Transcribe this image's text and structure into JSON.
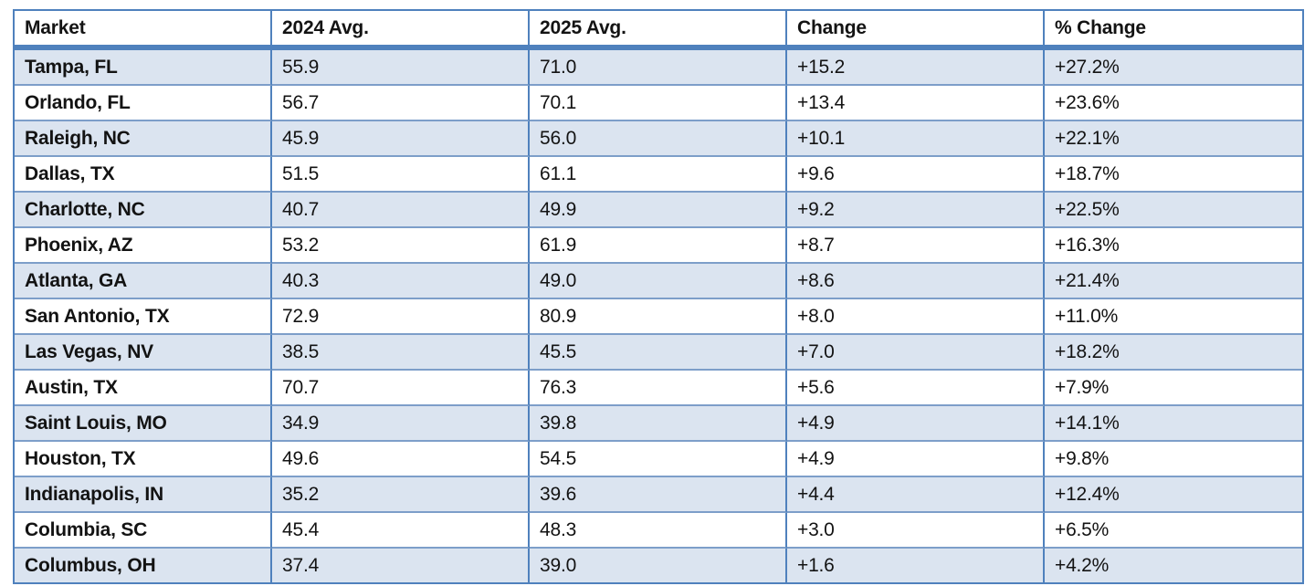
{
  "page": {
    "background": "#ffffff"
  },
  "colors": {
    "border_strong": "#4f81bd",
    "border_inner": "#7d9ec9",
    "row_shade": "#dbe4f0",
    "header_bg": "#ffffff",
    "text": "#131313"
  },
  "chart_data": {
    "type": "table",
    "columns": [
      "Market",
      "2024 Avg.",
      "2025 Avg.",
      "Change",
      "% Change"
    ],
    "rows": [
      [
        "Tampa, FL",
        "55.9",
        "71.0",
        "+15.2",
        "+27.2%"
      ],
      [
        "Orlando, FL",
        "56.7",
        "70.1",
        "+13.4",
        "+23.6%"
      ],
      [
        "Raleigh, NC",
        "45.9",
        "56.0",
        "+10.1",
        "+22.1%"
      ],
      [
        "Dallas, TX",
        "51.5",
        "61.1",
        "+9.6",
        "+18.7%"
      ],
      [
        "Charlotte, NC",
        "40.7",
        "49.9",
        "+9.2",
        "+22.5%"
      ],
      [
        "Phoenix, AZ",
        "53.2",
        "61.9",
        "+8.7",
        "+16.3%"
      ],
      [
        "Atlanta, GA",
        "40.3",
        "49.0",
        "+8.6",
        "+21.4%"
      ],
      [
        "San Antonio, TX",
        "72.9",
        "80.9",
        "+8.0",
        "+11.0%"
      ],
      [
        "Las Vegas, NV",
        "38.5",
        "45.5",
        "+7.0",
        "+18.2%"
      ],
      [
        "Austin, TX",
        "70.7",
        "76.3",
        "+5.6",
        "+7.9%"
      ],
      [
        "Saint Louis, MO",
        "34.9",
        "39.8",
        "+4.9",
        "+14.1%"
      ],
      [
        "Houston, TX",
        "49.6",
        "54.5",
        "+4.9",
        "+9.8%"
      ],
      [
        "Indianapolis, IN",
        "35.2",
        "39.6",
        "+4.4",
        "+12.4%"
      ],
      [
        "Columbia, SC",
        "45.4",
        "48.3",
        "+3.0",
        "+6.5%"
      ],
      [
        "Columbus, OH",
        "37.4",
        "39.0",
        "+1.6",
        "+4.2%"
      ]
    ],
    "layout_hints": {
      "banded_rows": true,
      "first_data_row_shaded": true,
      "bold_first_column": true,
      "bold_header": true,
      "grid": true,
      "columns_equal_width": true
    }
  }
}
